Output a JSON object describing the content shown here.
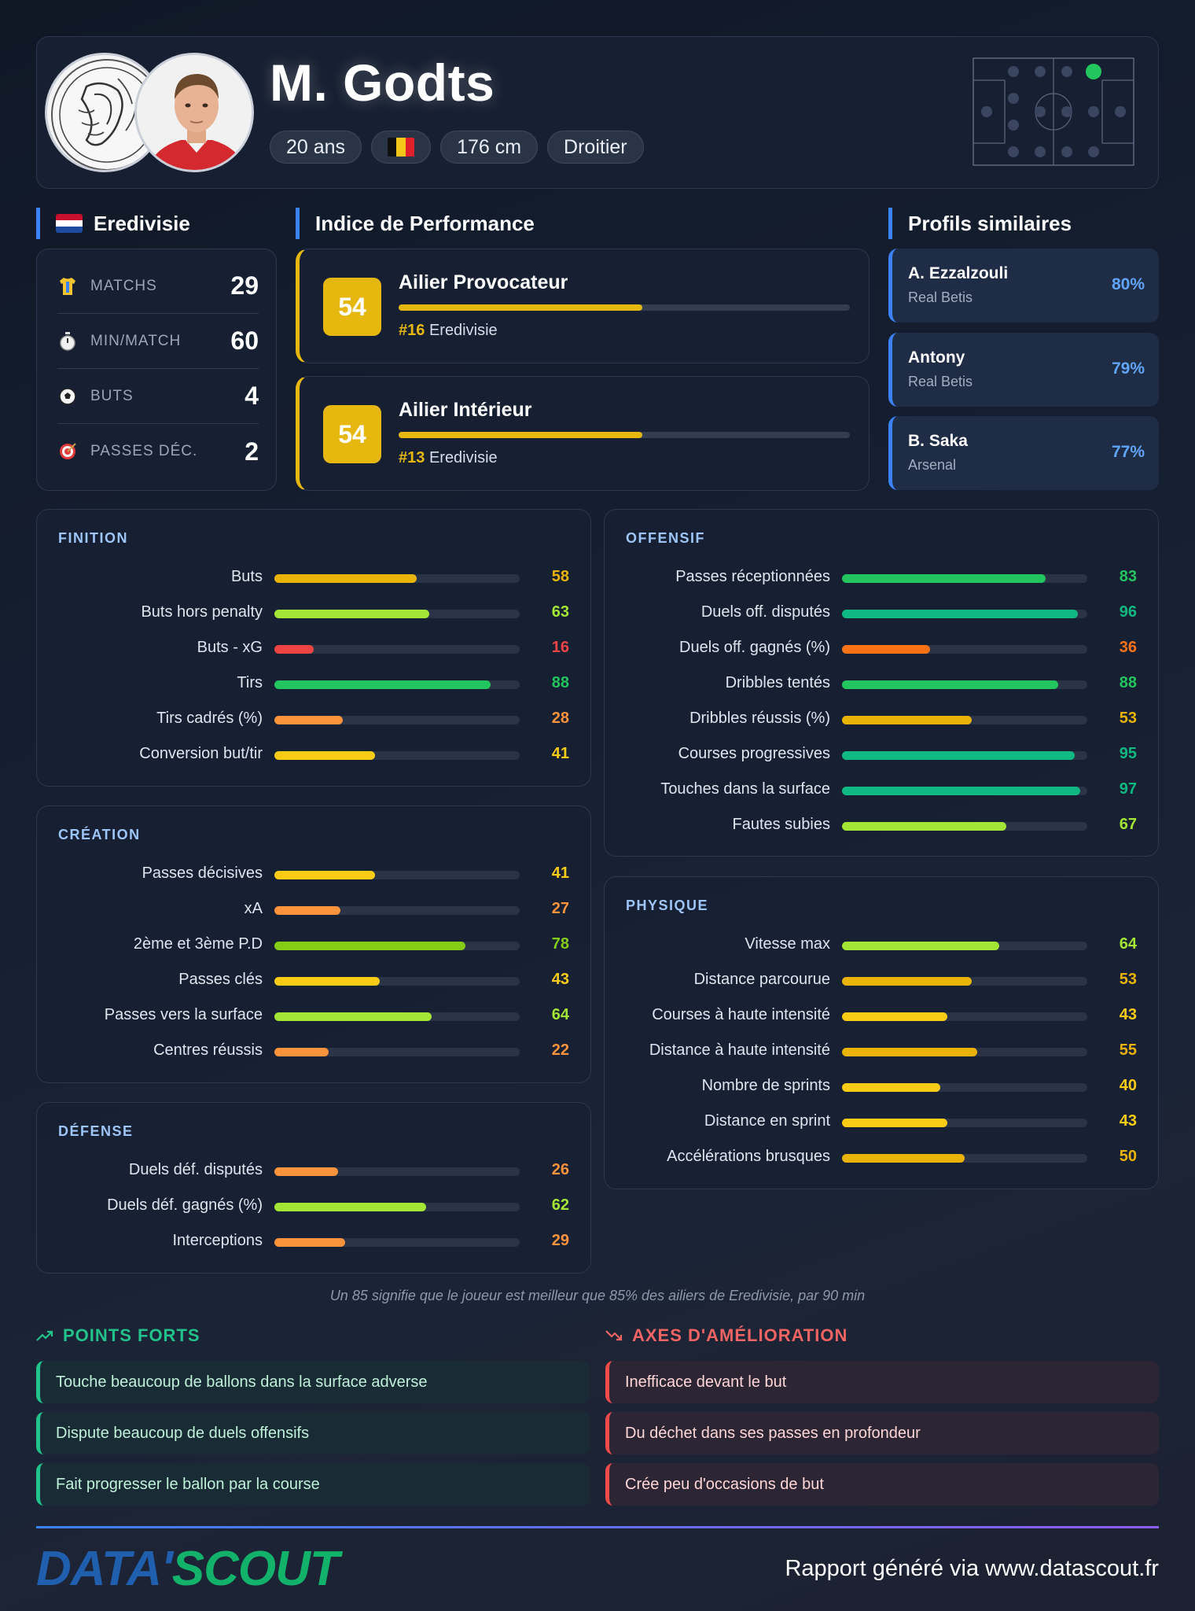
{
  "player": {
    "name": "M. Godts",
    "age": "20 ans",
    "height": "176 cm",
    "foot": "Droitier",
    "nationality_flag": "belgium-flag-icon"
  },
  "league": {
    "name": "Eredivisie",
    "flag": "netherlands-flag-icon",
    "stats": [
      {
        "label": "MATCHS",
        "value": "29",
        "icon": "shirt-icon"
      },
      {
        "label": "MIN/MATCH",
        "value": "60",
        "icon": "stopwatch-icon"
      },
      {
        "label": "BUTS",
        "value": "4",
        "icon": "football-icon"
      },
      {
        "label": "PASSES DÉC.",
        "value": "2",
        "icon": "target-icon"
      }
    ]
  },
  "performance": {
    "title": "Indice de Performance",
    "items": [
      {
        "score": "54",
        "role": "Ailier Provocateur",
        "rank": "#16",
        "league": "Eredivisie",
        "fill": 54
      },
      {
        "score": "54",
        "role": "Ailier Intérieur",
        "rank": "#13",
        "league": "Eredivisie",
        "fill": 54
      }
    ]
  },
  "similar": {
    "title": "Profils similaires",
    "items": [
      {
        "name": "A. Ezzalzouli",
        "club": "Real Betis",
        "pct": "80%"
      },
      {
        "name": "Antony",
        "club": "Real Betis",
        "pct": "79%"
      },
      {
        "name": "B. Saka",
        "club": "Arsenal",
        "pct": "77%"
      }
    ]
  },
  "groups": {
    "finition": {
      "title": "FINITION",
      "rows": [
        {
          "label": "Buts",
          "value": 58,
          "color": "#eab308"
        },
        {
          "label": "Buts hors penalty",
          "value": 63,
          "color": "#a3e635"
        },
        {
          "label": "Buts - xG",
          "value": 16,
          "color": "#ef4444"
        },
        {
          "label": "Tirs",
          "value": 88,
          "color": "#22c55e"
        },
        {
          "label": "Tirs cadrés (%)",
          "value": 28,
          "color": "#fb923c"
        },
        {
          "label": "Conversion but/tir",
          "value": 41,
          "color": "#facc15"
        }
      ]
    },
    "creation": {
      "title": "CRÉATION",
      "rows": [
        {
          "label": "Passes décisives",
          "value": 41,
          "color": "#facc15"
        },
        {
          "label": "xA",
          "value": 27,
          "color": "#fb923c"
        },
        {
          "label": "2ème et 3ème P.D",
          "value": 78,
          "color": "#84cc16"
        },
        {
          "label": "Passes clés",
          "value": 43,
          "color": "#facc15"
        },
        {
          "label": "Passes vers la surface",
          "value": 64,
          "color": "#a3e635"
        },
        {
          "label": "Centres réussis",
          "value": 22,
          "color": "#fb923c"
        }
      ]
    },
    "defense": {
      "title": "DÉFENSE",
      "rows": [
        {
          "label": "Duels déf. disputés",
          "value": 26,
          "color": "#fb923c"
        },
        {
          "label": "Duels déf. gagnés (%)",
          "value": 62,
          "color": "#a3e635"
        },
        {
          "label": "Interceptions",
          "value": 29,
          "color": "#fb923c"
        }
      ]
    },
    "offensif": {
      "title": "OFFENSIF",
      "rows": [
        {
          "label": "Passes réceptionnées",
          "value": 83,
          "color": "#22c55e"
        },
        {
          "label": "Duels off. disputés",
          "value": 96,
          "color": "#10b981"
        },
        {
          "label": "Duels off. gagnés (%)",
          "value": 36,
          "color": "#f97316"
        },
        {
          "label": "Dribbles tentés",
          "value": 88,
          "color": "#22c55e"
        },
        {
          "label": "Dribbles réussis (%)",
          "value": 53,
          "color": "#eab308"
        },
        {
          "label": "Courses progressives",
          "value": 95,
          "color": "#10b981"
        },
        {
          "label": "Touches dans la surface",
          "value": 97,
          "color": "#10b981"
        },
        {
          "label": "Fautes subies",
          "value": 67,
          "color": "#a3e635"
        }
      ]
    },
    "physique": {
      "title": "PHYSIQUE",
      "rows": [
        {
          "label": "Vitesse max",
          "value": 64,
          "color": "#a3e635"
        },
        {
          "label": "Distance parcourue",
          "value": 53,
          "color": "#eab308"
        },
        {
          "label": "Courses à haute intensité",
          "value": 43,
          "color": "#facc15"
        },
        {
          "label": "Distance à haute intensité",
          "value": 55,
          "color": "#eab308"
        },
        {
          "label": "Nombre de sprints",
          "value": 40,
          "color": "#facc15"
        },
        {
          "label": "Distance en sprint",
          "value": 43,
          "color": "#facc15"
        },
        {
          "label": "Accélérations brusques",
          "value": 50,
          "color": "#eab308"
        }
      ]
    }
  },
  "note": "Un 85 signifie que le joueur est meilleur que 85% des ailiers de Eredivisie, par 90 min",
  "strengths": {
    "title": "POINTS FORTS",
    "items": [
      "Touche beaucoup de ballons dans la surface adverse",
      "Dispute beaucoup de duels offensifs",
      "Fait progresser le ballon par la course"
    ]
  },
  "weaknesses": {
    "title": "AXES D'AMÉLIORATION",
    "items": [
      "Inefficace devant le but",
      "Du déchet dans ses passes en profondeur",
      "Crée peu d'occasions de but"
    ]
  },
  "footer": {
    "brand_left": "DATA'",
    "brand_right": "SCOUT",
    "text": "Rapport généré via www.datascout.fr"
  },
  "colors": {
    "accent_blue": "#3b82f6",
    "gold": "#e6b80f",
    "good": "#22c38a",
    "bad": "#ef4b4b",
    "position_dot": "#22c55e"
  }
}
